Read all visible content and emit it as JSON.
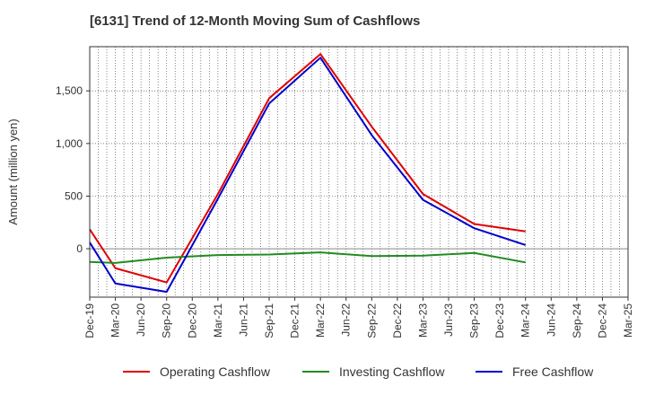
{
  "chart_data": {
    "type": "line",
    "title": "[6131]  Trend of 12-Month Moving Sum of Cashflows",
    "ylabel": "Amount (million yen)",
    "xlabel": "",
    "categories": [
      "Dec-19",
      "Mar-20",
      "Jun-20",
      "Sep-20",
      "Dec-20",
      "Mar-21",
      "Jun-21",
      "Sep-21",
      "Dec-21",
      "Mar-22",
      "Jun-22",
      "Sep-22",
      "Dec-22",
      "Mar-23",
      "Jun-23",
      "Sep-23",
      "Dec-23",
      "Mar-24",
      "Jun-24",
      "Sep-24",
      "Dec-24",
      "Mar-25"
    ],
    "ylim": [
      -460,
      1920
    ],
    "yticks": [
      0,
      500,
      1000,
      1500
    ],
    "ytick_labels": [
      "0",
      "500",
      "1,000",
      "1,500"
    ],
    "grid": true,
    "legend_position": "bottom",
    "series": [
      {
        "name": "Operating Cashflow",
        "color": "#e00000",
        "values": [
          185,
          -185,
          null,
          -320,
          null,
          520,
          null,
          1430,
          null,
          1850,
          null,
          1160,
          null,
          520,
          null,
          235,
          null,
          165,
          null,
          null,
          null,
          null
        ]
      },
      {
        "name": "Investing Cashflow",
        "color": "#228b22",
        "values": [
          -125,
          -135,
          null,
          -85,
          null,
          -60,
          null,
          -55,
          null,
          -35,
          null,
          -70,
          null,
          -65,
          null,
          -40,
          null,
          -130,
          null,
          null,
          null,
          null
        ]
      },
      {
        "name": "Free Cashflow",
        "color": "#0000cc",
        "values": [
          60,
          -330,
          null,
          -410,
          null,
          475,
          null,
          1380,
          null,
          1815,
          null,
          1080,
          null,
          465,
          null,
          195,
          null,
          35,
          null,
          null,
          null,
          null
        ]
      }
    ]
  }
}
